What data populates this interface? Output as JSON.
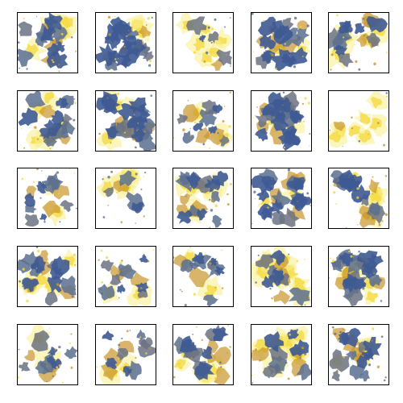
{
  "figure": {
    "rows": 5,
    "columns": 5,
    "colors": {
      "background": "#ffffff",
      "frame": "#000000",
      "blue": "#3e5a94",
      "slate": "#5b6f8f",
      "gray": "#6b7283",
      "amber": "#c9962e",
      "yellow": "#f4d83a",
      "pale_yellow": "#f8ec88"
    },
    "tiles": [
      {
        "kind": "mixed",
        "seed": 11
      },
      {
        "kind": "blue-dense",
        "seed": 12
      },
      {
        "kind": "yellow-sparse",
        "seed": 13
      },
      {
        "kind": "blue-dense",
        "seed": 14
      },
      {
        "kind": "mixed",
        "seed": 15
      },
      {
        "kind": "mixed",
        "seed": 21
      },
      {
        "kind": "mixed-dense",
        "seed": 22
      },
      {
        "kind": "sparse",
        "seed": 23
      },
      {
        "kind": "blue-dense",
        "seed": 24
      },
      {
        "kind": "yellow-only",
        "seed": 25
      },
      {
        "kind": "sparse",
        "seed": 31
      },
      {
        "kind": "yellow-sparse",
        "seed": 32
      },
      {
        "kind": "mixed",
        "seed": 33
      },
      {
        "kind": "blue-dense",
        "seed": 34
      },
      {
        "kind": "mixed",
        "seed": 35
      },
      {
        "kind": "mixed",
        "seed": 41
      },
      {
        "kind": "sparse",
        "seed": 42
      },
      {
        "kind": "sparse",
        "seed": 43
      },
      {
        "kind": "yellow-dense",
        "seed": 44
      },
      {
        "kind": "mixed-dense",
        "seed": 45
      },
      {
        "kind": "sparse",
        "seed": 51
      },
      {
        "kind": "sparse",
        "seed": 52
      },
      {
        "kind": "mixed",
        "seed": 53
      },
      {
        "kind": "yellow-dense",
        "seed": 54
      },
      {
        "kind": "mixed",
        "seed": 55
      }
    ]
  }
}
